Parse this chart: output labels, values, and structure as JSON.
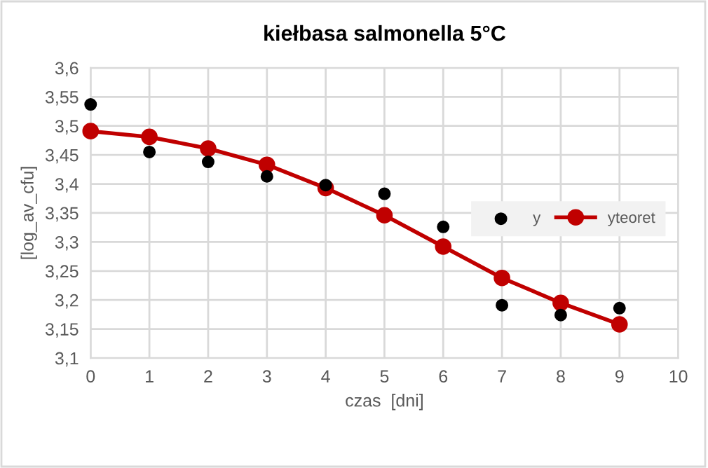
{
  "chart_data": {
    "type": "scatter",
    "title": "kiełbasa salmonella 5°C",
    "xlabel": "czas  [dni]",
    "ylabel": "[log_av_cfu]",
    "x": [
      0,
      1,
      2,
      3,
      4,
      5,
      6,
      7,
      8,
      9
    ],
    "series": [
      {
        "name": "y",
        "color": "#000000",
        "marker": "circle",
        "values": [
          3.537,
          3.455,
          3.438,
          3.413,
          3.398,
          3.383,
          3.326,
          3.191,
          3.174,
          3.186
        ]
      },
      {
        "name": "yteoret",
        "type": "line",
        "color": "#c00000",
        "marker": "circle",
        "line_style": "solid",
        "values": [
          3.491,
          3.481,
          3.461,
          3.433,
          3.393,
          3.346,
          3.292,
          3.238,
          3.195,
          3.158
        ]
      }
    ],
    "xlim": [
      0,
      10
    ],
    "xticks": [
      0,
      1,
      2,
      3,
      4,
      5,
      6,
      7,
      8,
      9,
      10
    ],
    "ylim": [
      3.1,
      3.6
    ],
    "yticks": [
      {
        "value": 3.1,
        "label": "3,1"
      },
      {
        "value": 3.15,
        "label": "3,15"
      },
      {
        "value": 3.2,
        "label": "3,2"
      },
      {
        "value": 3.25,
        "label": "3,25"
      },
      {
        "value": 3.3,
        "label": "3,3"
      },
      {
        "value": 3.35,
        "label": "3,35"
      },
      {
        "value": 3.4,
        "label": "3,4"
      },
      {
        "value": 3.45,
        "label": "3,45"
      },
      {
        "value": 3.5,
        "label": "3,5"
      },
      {
        "value": 3.55,
        "label": "3,55"
      },
      {
        "value": 3.6,
        "label": "3,6"
      }
    ],
    "grid": true,
    "legend": "right"
  }
}
